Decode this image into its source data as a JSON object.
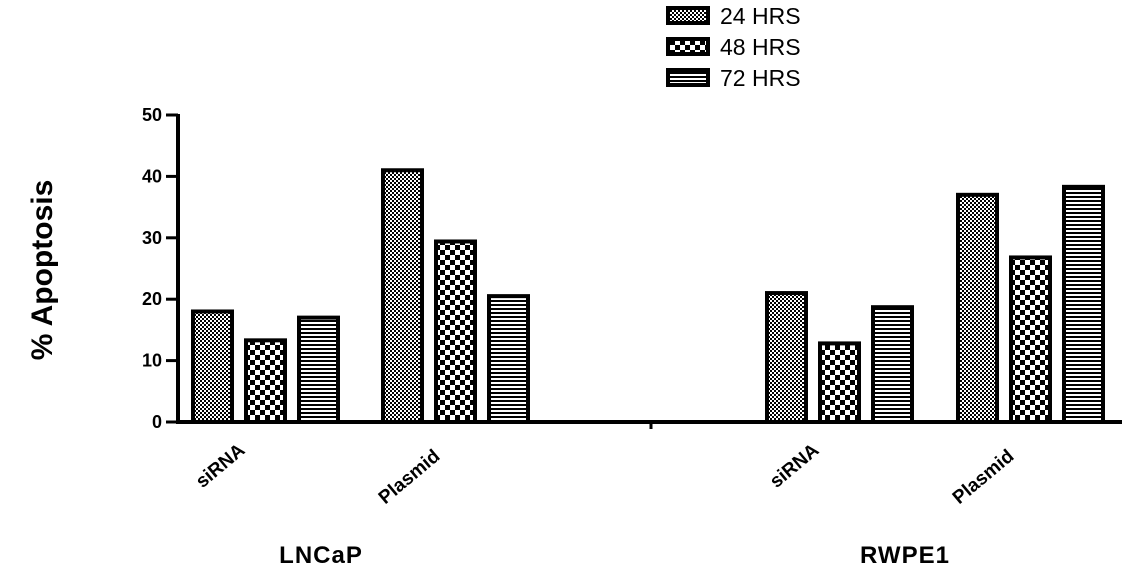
{
  "chart_data": {
    "type": "bar",
    "ylabel": "% Apoptosis",
    "ylim": [
      0,
      50
    ],
    "yticks": [
      0,
      10,
      20,
      30,
      40,
      50
    ],
    "groups": [
      {
        "name": "LNCaP",
        "categories": [
          "siRNA",
          "Plasmid"
        ]
      },
      {
        "name": "RWPE1",
        "categories": [
          "siRNA",
          "Plasmid"
        ]
      }
    ],
    "categories": [
      "siRNA",
      "Plasmid",
      "siRNA",
      "Plasmid"
    ],
    "series": [
      {
        "name": "24 HRS",
        "pattern": "dots",
        "values": [
          18,
          41,
          21,
          37
        ]
      },
      {
        "name": "48 HRS",
        "pattern": "checker",
        "values": [
          13.3,
          29.4,
          12.8,
          26.8
        ]
      },
      {
        "name": "72 HRS",
        "pattern": "hlines",
        "values": [
          17,
          20.5,
          18.7,
          38.3
        ]
      }
    ],
    "legend_position": "top-right",
    "grid": false
  }
}
